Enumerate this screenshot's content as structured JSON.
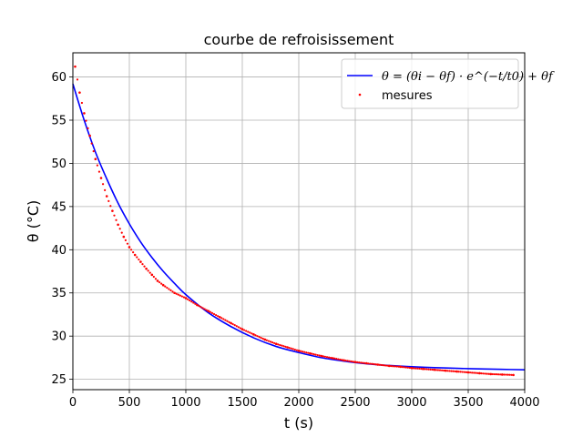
{
  "chart_data": {
    "type": "scatter",
    "title": "courbe de refroisissement",
    "xlabel": "t (s)",
    "ylabel": "θ (°C)",
    "xlim": [
      0,
      4000
    ],
    "ylim": [
      23.8,
      62.8
    ],
    "x_ticks": [
      0,
      500,
      1000,
      1500,
      2000,
      2500,
      3000,
      3500,
      4000
    ],
    "y_ticks": [
      25,
      30,
      35,
      40,
      45,
      50,
      55,
      60
    ],
    "grid": true,
    "legend_position": "top-right",
    "series": [
      {
        "name": "θ = (θi − θf) · e^(−t/t0) + θf",
        "kind": "line",
        "color": "#0000ff",
        "x": [
          0,
          100,
          200,
          300,
          400,
          500,
          600,
          700,
          800,
          900,
          1000,
          1200,
          1400,
          1600,
          1800,
          2000,
          2200,
          2400,
          2600,
          2800,
          3000,
          3200,
          3400,
          3600,
          3800,
          4000
        ],
        "y": [
          59.2,
          55.0,
          51.3,
          48.2,
          45.4,
          43.0,
          40.9,
          39.1,
          37.5,
          36.1,
          34.8,
          32.7,
          31.1,
          29.8,
          28.8,
          28.1,
          27.5,
          27.1,
          26.8,
          26.6,
          26.45,
          26.35,
          26.27,
          26.2,
          26.15,
          26.1
        ]
      },
      {
        "name": "mesures",
        "kind": "scatter",
        "color": "#ff0000",
        "x": [
          20,
          60,
          100,
          150,
          200,
          250,
          300,
          350,
          400,
          450,
          500,
          550,
          600,
          650,
          700,
          750,
          800,
          900,
          1000,
          1100,
          1200,
          1300,
          1400,
          1500,
          1600,
          1700,
          1800,
          1900,
          2000,
          2100,
          2200,
          2300,
          2400,
          2500,
          2600,
          2700,
          2800,
          2900,
          3000,
          3100,
          3200,
          3300,
          3400,
          3500,
          3600,
          3700,
          3800,
          3900
        ],
        "y": [
          61.2,
          58.2,
          55.8,
          53.2,
          50.5,
          48.3,
          46.2,
          44.5,
          42.9,
          41.5,
          40.3,
          39.4,
          38.6,
          37.8,
          37.1,
          36.4,
          35.9,
          35.0,
          34.4,
          33.6,
          32.9,
          32.2,
          31.5,
          30.8,
          30.2,
          29.6,
          29.1,
          28.7,
          28.3,
          28.0,
          27.7,
          27.45,
          27.2,
          27.0,
          26.85,
          26.7,
          26.55,
          26.45,
          26.3,
          26.2,
          26.1,
          26.0,
          25.9,
          25.8,
          25.7,
          25.6,
          25.55,
          25.5
        ]
      }
    ]
  }
}
